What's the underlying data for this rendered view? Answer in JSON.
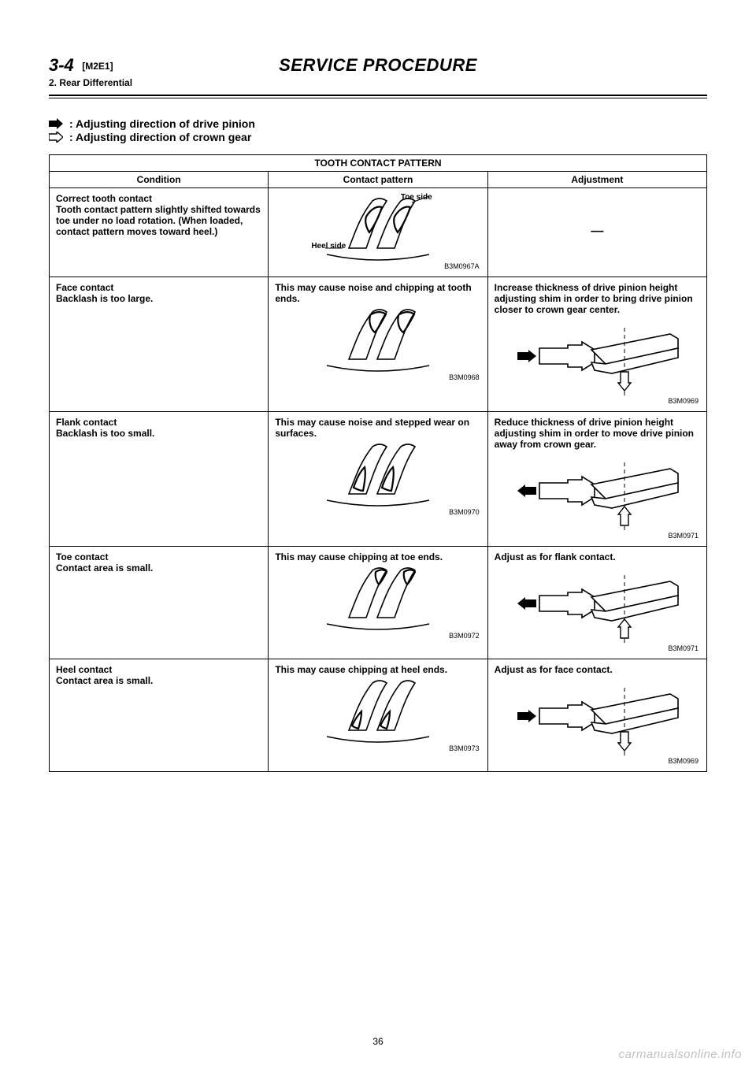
{
  "header": {
    "section_number": "3-4",
    "section_code": "[M2E1]",
    "subtitle": "2. Rear Differential",
    "title": "SERVICE PROCEDURE"
  },
  "legend": {
    "pinion": ": Adjusting direction of drive pinion",
    "crown": ": Adjusting direction of crown gear"
  },
  "table": {
    "caption": "TOOTH CONTACT PATTERN",
    "headers": {
      "condition": "Condition",
      "pattern": "Contact pattern",
      "adjustment": "Adjustment"
    },
    "rows": [
      {
        "condition_title": "Correct tooth contact",
        "condition_body": "Tooth contact pattern slightly shifted towards toe under no load rotation. (When loaded, contact pattern moves toward heel.)",
        "pattern_text": "",
        "pattern_code": "B3M0967A",
        "toe_label": "Toe side",
        "heel_label": "Heel side",
        "adjustment_text": "—",
        "adjustment_code": "",
        "contact": "face_shift_toe",
        "adj_arrow": null
      },
      {
        "condition_title": "Face contact",
        "condition_body": "Backlash is too large.",
        "pattern_text": "This may cause noise and chipping at tooth ends.",
        "pattern_code": "B3M0968",
        "adjustment_text": "Increase thickness of drive pinion height adjusting shim in order to bring drive pinion closer to crown gear center.",
        "adjustment_code": "B3M0969",
        "contact": "face",
        "adj_arrow": {
          "pinion": "right",
          "crown": "down"
        }
      },
      {
        "condition_title": "Flank contact",
        "condition_body": "Backlash is too small.",
        "pattern_text": "This may cause noise and stepped wear on surfaces.",
        "pattern_code": "B3M0970",
        "adjustment_text": "Reduce thickness of drive pinion height adjusting shim in order to move drive pinion away from crown gear.",
        "adjustment_code": "B3M0971",
        "contact": "flank",
        "adj_arrow": {
          "pinion": "left",
          "crown": "up"
        }
      },
      {
        "condition_title": "Toe contact",
        "condition_body": "Contact area is small.",
        "pattern_text": "This may cause chipping at toe ends.",
        "pattern_code": "B3M0972",
        "adjustment_text": "Adjust as for flank contact.",
        "adjustment_code": "B3M0971",
        "contact": "toe",
        "adj_arrow": {
          "pinion": "left",
          "crown": "up"
        }
      },
      {
        "condition_title": "Heel contact",
        "condition_body": "Contact area is small.",
        "pattern_text": "This may cause chipping at heel ends.",
        "pattern_code": "B3M0973",
        "adjustment_text": "Adjust as for face contact.",
        "adjustment_code": "B3M0969",
        "contact": "heel",
        "adj_arrow": {
          "pinion": "right",
          "crown": "down"
        }
      }
    ]
  },
  "style": {
    "stroke": "#000000",
    "stroke_width_main": 1.6,
    "stroke_width_heavy": 2.2,
    "fill_contact": "none",
    "arrow_fill_solid": "#000000",
    "arrow_fill_hollow": "#ffffff"
  },
  "footer": {
    "page_number": "36",
    "watermark": "carmanualsonline.info"
  }
}
